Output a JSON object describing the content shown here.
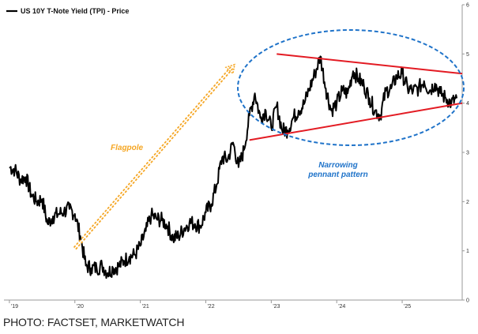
{
  "chart_data": {
    "type": "line",
    "series": [
      {
        "name": "US 10Y T-Note Yield (TPI) - Price",
        "color": "#000000",
        "x": [
          "2019-01",
          "2019-02",
          "2019-03",
          "2019-04",
          "2019-05",
          "2019-06",
          "2019-07",
          "2019-08",
          "2019-09",
          "2019-10",
          "2019-11",
          "2019-12",
          "2020-01",
          "2020-02",
          "2020-03",
          "2020-04",
          "2020-05",
          "2020-06",
          "2020-07",
          "2020-08",
          "2020-09",
          "2020-10",
          "2020-11",
          "2020-12",
          "2021-01",
          "2021-02",
          "2021-03",
          "2021-04",
          "2021-05",
          "2021-06",
          "2021-07",
          "2021-08",
          "2021-09",
          "2021-10",
          "2021-11",
          "2021-12",
          "2022-01",
          "2022-02",
          "2022-03",
          "2022-04",
          "2022-05",
          "2022-06",
          "2022-07",
          "2022-08",
          "2022-09",
          "2022-10",
          "2022-11",
          "2022-12",
          "2023-01",
          "2023-02",
          "2023-03",
          "2023-04",
          "2023-05",
          "2023-06",
          "2023-07",
          "2023-08",
          "2023-09",
          "2023-10",
          "2023-11",
          "2023-12",
          "2024-01",
          "2024-02",
          "2024-03",
          "2024-04",
          "2024-05",
          "2024-06",
          "2024-07",
          "2024-08",
          "2024-09",
          "2024-10",
          "2024-11",
          "2024-12",
          "2025-01",
          "2025-02",
          "2025-03",
          "2025-04",
          "2025-05",
          "2025-06",
          "2025-07",
          "2025-08",
          "2025-09",
          "2025-10",
          "2025-11"
        ],
        "values": [
          2.7,
          2.65,
          2.45,
          2.5,
          2.15,
          2.0,
          2.05,
          1.55,
          1.7,
          1.75,
          1.8,
          1.85,
          1.75,
          1.3,
          0.7,
          0.65,
          0.65,
          0.7,
          0.55,
          0.65,
          0.68,
          0.8,
          0.88,
          0.92,
          1.1,
          1.4,
          1.72,
          1.65,
          1.62,
          1.5,
          1.25,
          1.3,
          1.45,
          1.58,
          1.55,
          1.5,
          1.78,
          1.95,
          2.35,
          2.9,
          2.85,
          3.2,
          2.7,
          3.05,
          3.75,
          4.2,
          3.7,
          3.85,
          3.5,
          3.95,
          3.45,
          3.45,
          3.7,
          3.85,
          3.98,
          4.3,
          4.6,
          4.95,
          4.3,
          3.85,
          4.0,
          4.25,
          4.2,
          4.65,
          4.5,
          4.35,
          4.1,
          3.85,
          3.75,
          4.25,
          4.3,
          4.55,
          4.6,
          4.3,
          4.25,
          4.3,
          4.45,
          4.25,
          4.4,
          4.2,
          4.1,
          4.0,
          4.1
        ]
      }
    ],
    "y_ticks": [
      "0",
      "1",
      "2",
      "3",
      "4",
      "5",
      "6"
    ],
    "x_ticks": [
      "'19",
      "'20",
      "'21",
      "'22",
      "'23",
      "'24",
      "'25"
    ],
    "ylim": [
      0,
      6
    ],
    "xlim": [
      "2018-12",
      "2025-12"
    ],
    "grid": false,
    "legend_placement": "top-left",
    "annotations": [
      {
        "text": "Flagpole",
        "color": "#f5a623"
      },
      {
        "text": "Narrowing\npennant pattern",
        "color": "#1f73c9"
      }
    ],
    "overlays": {
      "flagpole": {
        "color": "#f5a623",
        "from": {
          "x": "2020-01",
          "y": 1.05
        },
        "to": {
          "x": "2022-06",
          "y": 4.75
        }
      },
      "pennant_upper": {
        "color": "#e31b23",
        "from": {
          "x": "2023-02",
          "y": 5.0
        },
        "to": {
          "x": "2025-12",
          "y": 4.6
        }
      },
      "pennant_lower": {
        "color": "#e31b23",
        "from": {
          "x": "2022-09",
          "y": 3.25
        },
        "to": {
          "x": "2025-12",
          "y": 4.0
        }
      },
      "ellipse_color": "#1f73c9"
    }
  },
  "credit": "PHOTO: FACTSET, MARKETWATCH"
}
